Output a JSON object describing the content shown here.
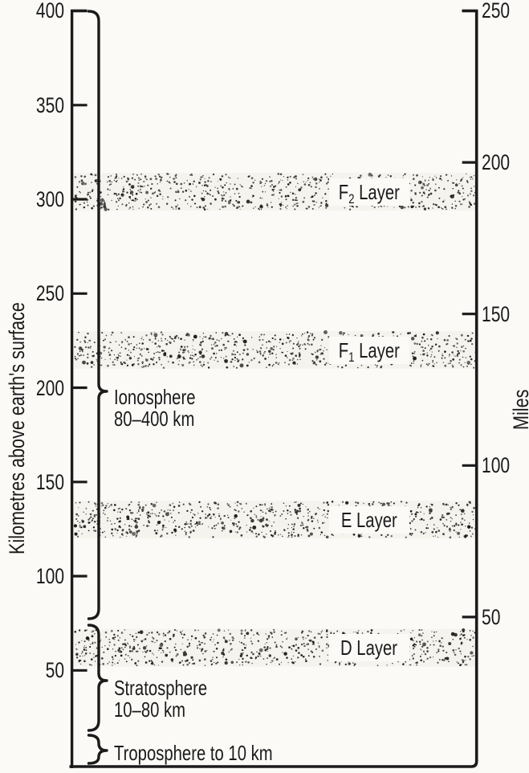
{
  "left_axis": {
    "title": "Kilometres above earth's surface",
    "tick_labels": [
      "400",
      "350",
      "300",
      "250",
      "200",
      "150",
      "100",
      "50"
    ],
    "tick_values_km": [
      400,
      350,
      300,
      250,
      200,
      150,
      100,
      50
    ]
  },
  "right_axis": {
    "title": "Miles",
    "tick_labels": [
      "250",
      "200",
      "150",
      "100",
      "50"
    ],
    "tick_values_mi": [
      250,
      200,
      150,
      100,
      50
    ]
  },
  "layers": [
    {
      "id": "f2",
      "pre": "F",
      "sub": "2",
      "post": " Layer",
      "km_from": 294,
      "km_to": 314
    },
    {
      "id": "f1",
      "pre": "F",
      "sub": "1",
      "post": " Layer",
      "km_from": 210,
      "km_to": 230
    },
    {
      "id": "e",
      "pre": "E",
      "sub": "",
      "post": " Layer",
      "km_from": 120,
      "km_to": 140
    },
    {
      "id": "d",
      "pre": "D",
      "sub": "",
      "post": " Layer",
      "km_from": 52,
      "km_to": 72
    }
  ],
  "regions": [
    {
      "name": "ionosphere",
      "lines": [
        "Ionosphere",
        "80–400 km"
      ]
    },
    {
      "name": "stratosphere",
      "lines": [
        "Stratosphere",
        "10–80 km"
      ]
    },
    {
      "name": "troposphere",
      "lines": [
        "Troposphere to 10 km"
      ]
    }
  ],
  "colors": {
    "ink": "#1b1b1b",
    "paper": "#fbfaf7"
  }
}
